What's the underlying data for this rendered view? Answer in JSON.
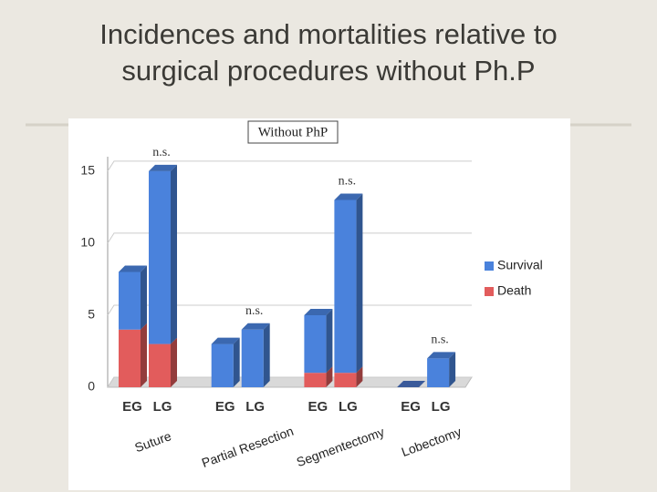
{
  "slide_title": "Incidences and mortalities relative to surgical procedures without Ph.P",
  "chart_data": {
    "type": "stacked-bar-3d",
    "title": "Without PhP",
    "categories": [
      "EG",
      "LG",
      "EG",
      "LG",
      "EG",
      "LG",
      "EG",
      "LG"
    ],
    "groups": [
      "Suture",
      "Partial Resection",
      "Segmentectomy",
      "Lobectomy"
    ],
    "annotations": [
      "n.s.",
      "n.s.",
      "n.s.",
      "n.s."
    ],
    "series": [
      {
        "name": "Survival",
        "color": "#4a82dc",
        "values": [
          4,
          12,
          3,
          4,
          4,
          12,
          0,
          2
        ]
      },
      {
        "name": "Death",
        "color": "#e25c5c",
        "values": [
          4,
          3,
          0,
          0,
          1,
          1,
          0,
          0
        ]
      }
    ],
    "ylim": [
      0,
      16
    ],
    "yticks": [
      0,
      5,
      10,
      15
    ],
    "grid": true,
    "legend": "right"
  }
}
